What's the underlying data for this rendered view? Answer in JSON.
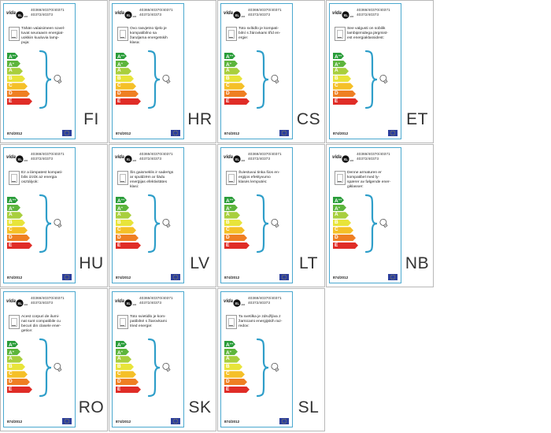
{
  "brand": {
    "logo_left": "vida",
    "logo_right": "XL",
    "logo_suffix": ".com"
  },
  "models": "40369/40370/40371\n40372/40373",
  "regulation": "874/2012",
  "energy_classes": [
    {
      "label": "A",
      "plus": "++",
      "color": "#2a9d3a"
    },
    {
      "label": "A",
      "plus": "+",
      "color": "#5db53c"
    },
    {
      "label": "A",
      "plus": "",
      "color": "#a8cf3e"
    },
    {
      "label": "B",
      "plus": "",
      "color": "#e8e43a"
    },
    {
      "label": "C",
      "plus": "",
      "color": "#f5c028"
    },
    {
      "label": "D",
      "plus": "",
      "color": "#ef7f23"
    },
    {
      "label": "E",
      "plus": "",
      "color": "#e02d27"
    }
  ],
  "labels": [
    {
      "lang": "FI",
      "text": "Tähän valaisimeen sovel-\ntuvat seuraavin energiat-\nuokkiin kuuluvia lamp-\npuja:"
    },
    {
      "lang": "HR",
      "text": "Ovo rasvjetno tijelo je\nkompatibilno sa\nžaruljama energetskih\nklasa:"
    },
    {
      "lang": "CS",
      "text": "Toto svítidlo je kompati-\nbilní s žárovkami tříd en-\nergie:"
    },
    {
      "lang": "ET",
      "text": "See valgusti on sobilik\nlambipirnidega järgmist-\nest energiaklassidest:"
    },
    {
      "lang": "HU",
      "text": "Ez a lámpatest kompati-\nbilis izzók az energia\nosztályok:"
    },
    {
      "lang": "LV",
      "text": "Šis gaismeklis ir saderīgs\nar spuldzēm ar šādu\nenerģijas efektivitātes\nklasi:"
    },
    {
      "lang": "LT",
      "text": "Šviestuvui tinka šios en-\nergijos efektyvumo\nklasės lemputės:"
    },
    {
      "lang": "NB",
      "text": "Denne armaturen er\nkompatibel med ly-\nspærer av følgende ener-\ngiklasser:"
    },
    {
      "lang": "RO",
      "text": "Acest corpuri de ilumi-\nnat sunt compatibile cu\nbecuri din clasele ener-\ngetice:"
    },
    {
      "lang": "SK",
      "text": "Toto svietidlo je kom-\npatibilné s žiarovkami\ntried energie:"
    },
    {
      "lang": "SL",
      "text": "Ta svetilka je združljiva z\nžarnicami energijskih raz-\nredov:"
    }
  ]
}
